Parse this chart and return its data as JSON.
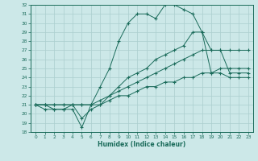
{
  "title": "",
  "xlabel": "Humidex (Indice chaleur)",
  "ylabel": "",
  "bg_color": "#cce8e8",
  "line_color": "#1a6b5a",
  "grid_color": "#aacece",
  "xlim": [
    -0.5,
    23.5
  ],
  "ylim": [
    18,
    32
  ],
  "xticks": [
    0,
    1,
    2,
    3,
    4,
    5,
    6,
    7,
    8,
    9,
    10,
    11,
    12,
    13,
    14,
    15,
    16,
    17,
    18,
    19,
    20,
    21,
    22,
    23
  ],
  "yticks": [
    18,
    19,
    20,
    21,
    22,
    23,
    24,
    25,
    26,
    27,
    28,
    29,
    30,
    31,
    32
  ],
  "lines": [
    {
      "x": [
        0,
        1,
        2,
        3,
        4,
        5,
        6,
        7,
        8,
        9,
        10,
        11,
        12,
        13,
        14,
        15,
        16,
        17,
        18,
        19,
        20,
        21,
        22,
        23
      ],
      "y": [
        21,
        21,
        20.5,
        20.5,
        20.5,
        18.5,
        21,
        23,
        25,
        28,
        30,
        31,
        31,
        30.5,
        32,
        32,
        31.5,
        31,
        29,
        24.5,
        24.5,
        24,
        24,
        24
      ]
    },
    {
      "x": [
        0,
        1,
        2,
        3,
        4,
        5,
        6,
        7,
        8,
        9,
        10,
        11,
        12,
        13,
        14,
        15,
        16,
        17,
        18,
        19,
        20,
        21,
        22,
        23
      ],
      "y": [
        21,
        20.5,
        20.5,
        20.5,
        21,
        19.5,
        20.5,
        21,
        22,
        23,
        24,
        24.5,
        25,
        26,
        26.5,
        27,
        27.5,
        29,
        29,
        27,
        27,
        24.5,
        24.5,
        24.5
      ]
    },
    {
      "x": [
        0,
        1,
        2,
        3,
        4,
        5,
        6,
        7,
        8,
        9,
        10,
        11,
        12,
        13,
        14,
        15,
        16,
        17,
        18,
        19,
        20,
        21,
        22,
        23
      ],
      "y": [
        21,
        21,
        21,
        21,
        21,
        21,
        21,
        21.5,
        22,
        22.5,
        23,
        23.5,
        24,
        24.5,
        25,
        25.5,
        26,
        26.5,
        27,
        27,
        27,
        27,
        27,
        27
      ]
    },
    {
      "x": [
        0,
        1,
        2,
        3,
        4,
        5,
        6,
        7,
        8,
        9,
        10,
        11,
        12,
        13,
        14,
        15,
        16,
        17,
        18,
        19,
        20,
        21,
        22,
        23
      ],
      "y": [
        21,
        21,
        21,
        21,
        21,
        21,
        21,
        21,
        21.5,
        22,
        22,
        22.5,
        23,
        23,
        23.5,
        23.5,
        24,
        24,
        24.5,
        24.5,
        25,
        25,
        25,
        25
      ]
    }
  ]
}
